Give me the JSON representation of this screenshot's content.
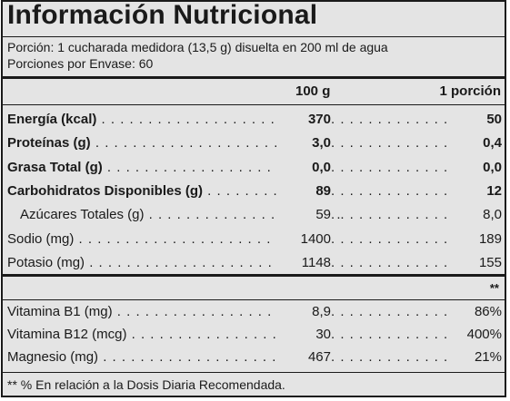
{
  "title": "Información Nutricional",
  "serving": {
    "size": "Porción: 1 cucharada medidora (13,5 g) disuelta en 200 ml de agua",
    "per_container": "Porciones por Envase: 60"
  },
  "headers": {
    "per100": "100 g",
    "per_portion": "1 porción"
  },
  "nutrients": [
    {
      "name": "Energía (kcal)",
      "per100": "370",
      "portion": "50",
      "bold": true
    },
    {
      "name": "Proteínas (g)",
      "per100": "3,0",
      "portion": "0,4",
      "bold": true
    },
    {
      "name": "Grasa Total (g)",
      "per100": "0,0",
      "portion": "0,0",
      "bold": true
    },
    {
      "name": "Carbohidratos Disponibles (g)",
      "per100": "89",
      "portion": "12",
      "bold": true
    },
    {
      "name": "Azúcares Totales (g)",
      "per100": "59",
      "portion": "8,0",
      "bold": false,
      "indent": true
    },
    {
      "name": "Sodio (mg)",
      "per100": "1400",
      "portion": "189",
      "bold": false
    },
    {
      "name": "Potasio (mg)",
      "per100": "1148",
      "portion": "155",
      "bold": false
    }
  ],
  "vitamins_header": "**",
  "vitamins": [
    {
      "name": "Vitamina B1 (mg)",
      "per100": "8,9",
      "portion": "86%"
    },
    {
      "name": "Vitamina B12 (mcg)",
      "per100": "30",
      "portion": "400%"
    },
    {
      "name": "Magnesio (mg)",
      "per100": "467",
      "portion": "21%"
    }
  ],
  "footnote": "** % En relación a la Dosis Diaria Recomendada."
}
